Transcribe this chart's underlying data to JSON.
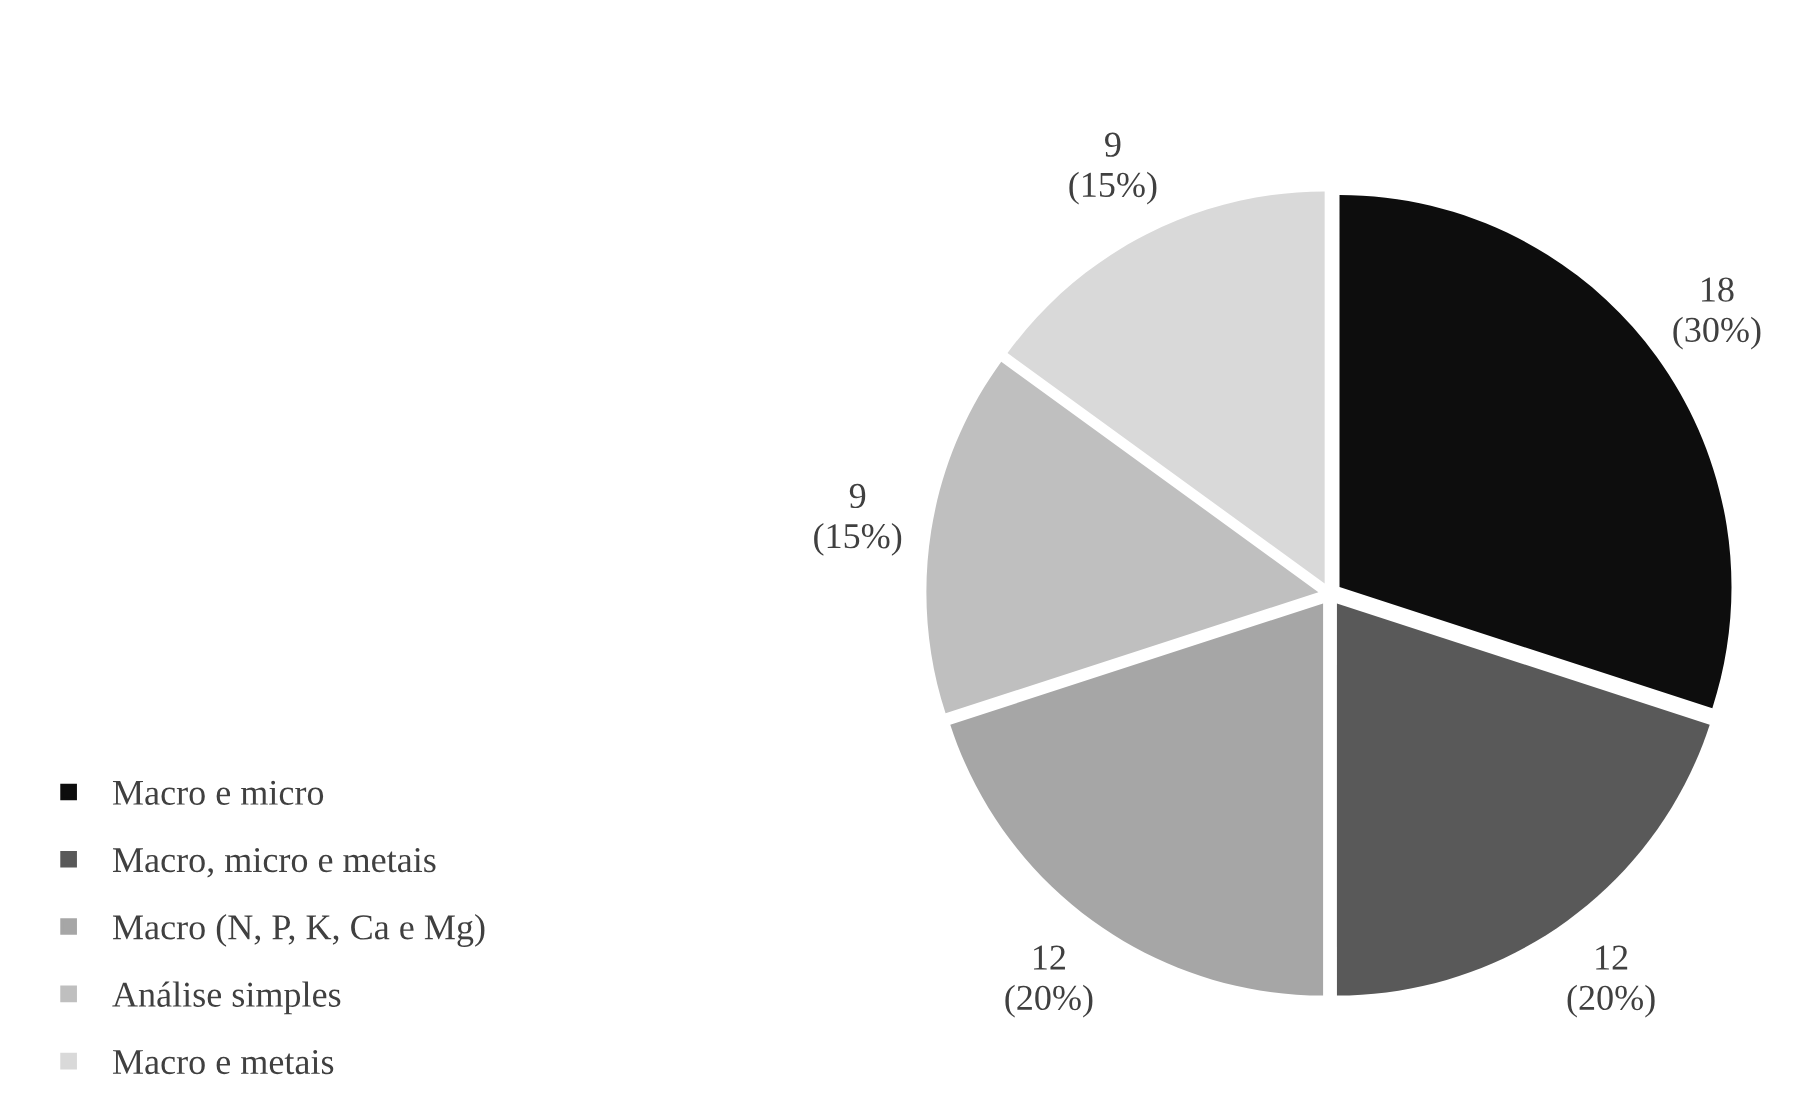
{
  "chart_data": {
    "type": "pie",
    "categories": [
      "Macro e micro",
      "Macro, micro e metais",
      "Macro (N, P, K, Ca e Mg)",
      "Análise simples",
      "Macro e metais"
    ],
    "values": [
      18,
      12,
      12,
      9,
      9
    ],
    "value_labels": [
      "18\n(30%)",
      "12\n(20%)",
      "12\n(20%)",
      "9\n(15%)",
      "9\n(15%)"
    ],
    "colors": [
      "#0d0d0d",
      "#595959",
      "#a6a6a6",
      "#bfbfbf",
      "#d9d9d9"
    ],
    "legend": "bottom left"
  }
}
